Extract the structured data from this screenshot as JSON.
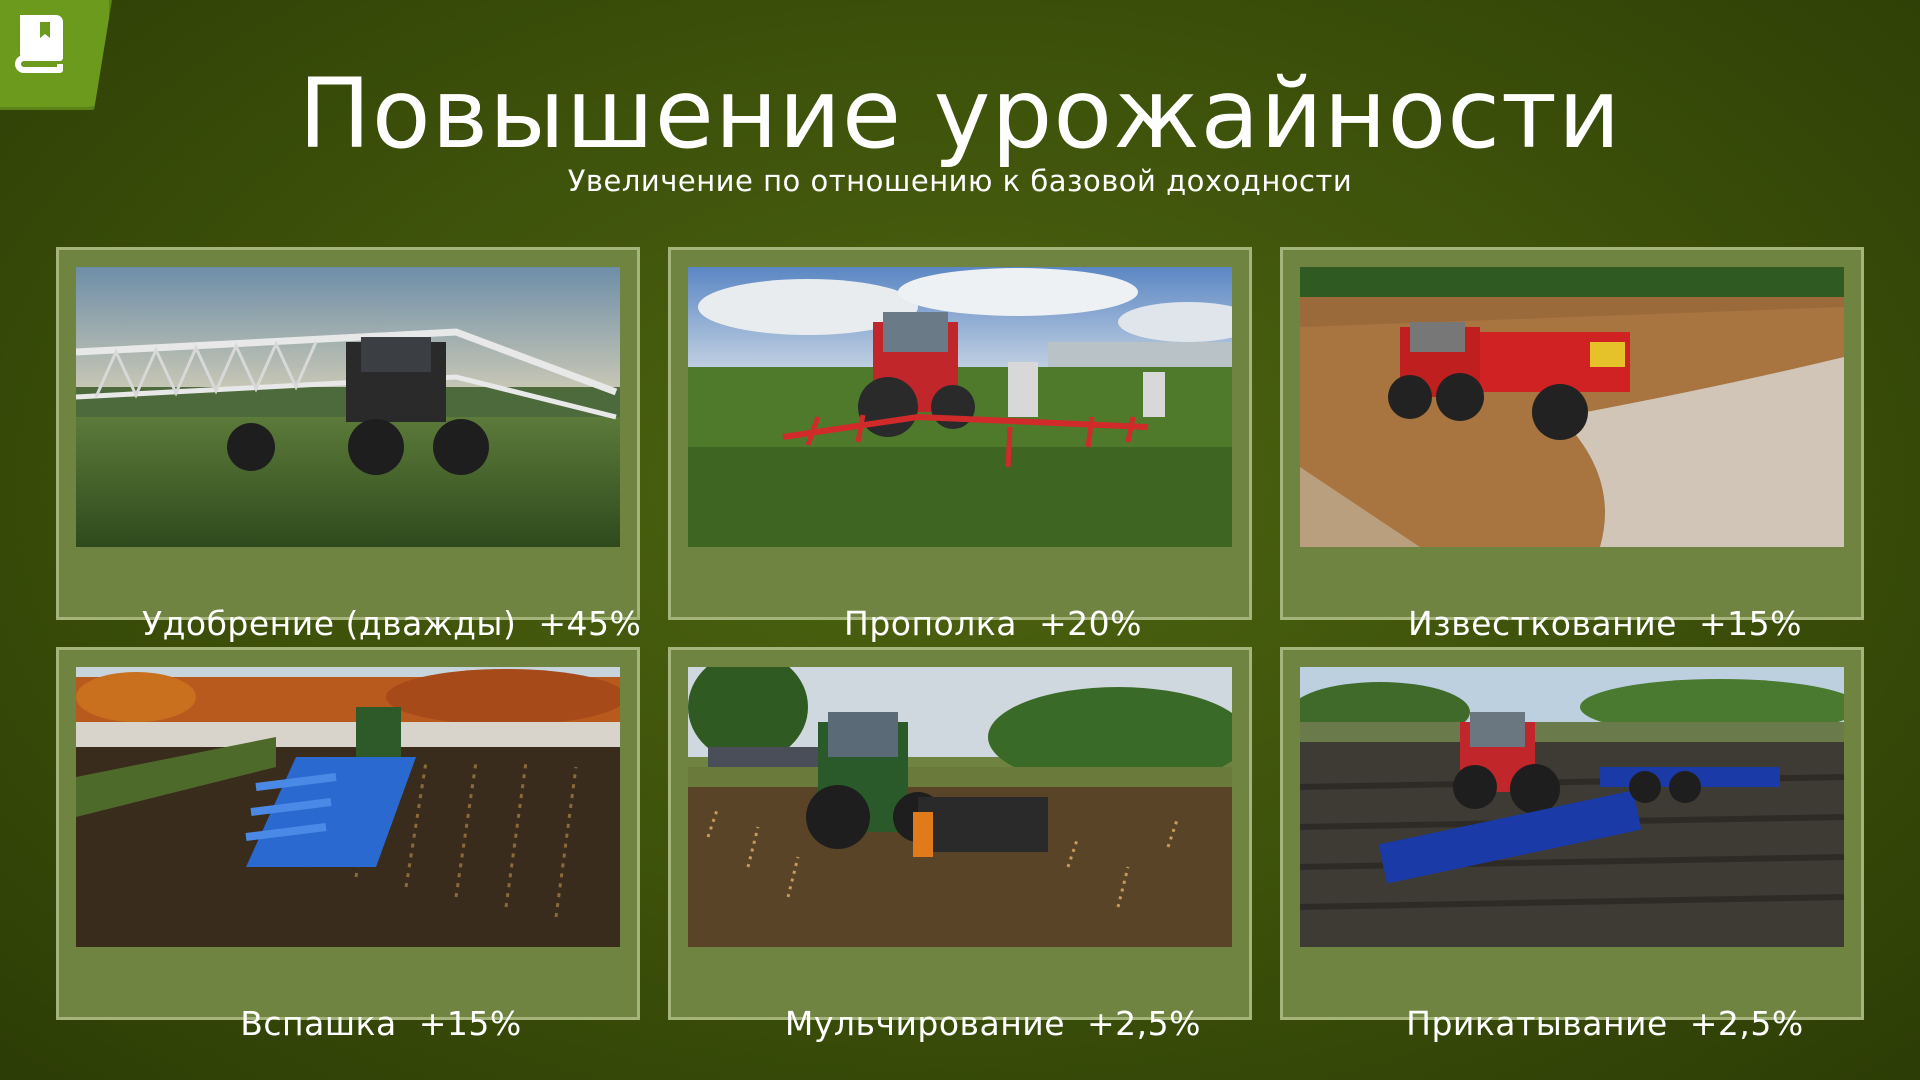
{
  "header": {
    "title": "Повышение урожайности",
    "subtitle": "Увеличение по отношению к базовой доходности"
  },
  "badge": {
    "icon": "book-icon",
    "color": "#6b9a1c"
  },
  "cards": [
    {
      "label": "Удобрение (дважды)",
      "value": "+45%",
      "image": "sprayer-tractor"
    },
    {
      "label": "Прополка",
      "value": "+20%",
      "image": "weeder-tractor"
    },
    {
      "label": "Известкование",
      "value": "+15%",
      "image": "lime-spreader"
    },
    {
      "label": "Вспашка",
      "value": "+15%",
      "image": "plough-tractor"
    },
    {
      "label": "Мульчирование",
      "value": "+2,5%",
      "image": "mulcher-tractor"
    },
    {
      "label": "Прикатывание",
      "value": "+2,5%",
      "image": "roller-tractor"
    }
  ],
  "colors": {
    "background": "#3f540b",
    "card": "#6f8440",
    "card_border": "#a4b47a",
    "text": "#ffffff"
  }
}
